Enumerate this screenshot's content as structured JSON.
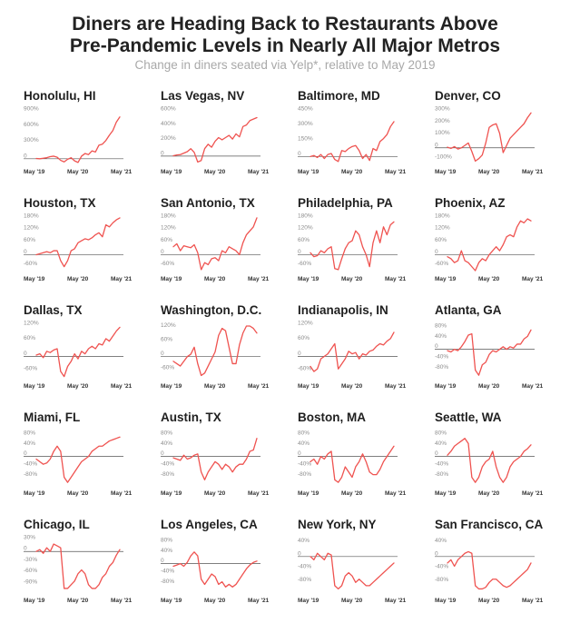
{
  "title_line1": "Diners are Heading Back to Restaurants Above",
  "title_line2": "Pre-Pandemic Levels in Nearly All Major Metros",
  "subtitle": "Change in diners seated via Yelp*, relative to May 2019",
  "colors": {
    "line": "#ef5350",
    "axis": "#555555",
    "text": "#222222",
    "tick": "#8c8c8c"
  },
  "chart_data": [
    {
      "type": "line",
      "title": "Honolulu, HI",
      "yticks": [
        "900%",
        "600%",
        "300%",
        "0"
      ],
      "ytick_values": [
        900,
        600,
        300,
        0
      ],
      "ylim": [
        -90,
        900
      ],
      "xticks": [
        "May '19",
        "May '20",
        "May '21"
      ],
      "values": [
        5,
        0,
        10,
        20,
        40,
        50,
        30,
        -30,
        -60,
        -10,
        20,
        -40,
        -70,
        50,
        100,
        80,
        150,
        130,
        260,
        280,
        350,
        450,
        540,
        700,
        800
      ]
    },
    {
      "type": "line",
      "title": "Las Vegas, NV",
      "yticks": [
        "600%",
        "400%",
        "200%",
        "0"
      ],
      "ytick_values": [
        600,
        400,
        200,
        0
      ],
      "ylim": [
        -100,
        600
      ],
      "xticks": [
        "May '19",
        "May '20",
        "May '21"
      ],
      "values": [
        5,
        15,
        20,
        40,
        60,
        100,
        50,
        -80,
        -60,
        100,
        160,
        120,
        200,
        250,
        220,
        250,
        280,
        230,
        300,
        260,
        400,
        420,
        480,
        500,
        520
      ]
    },
    {
      "type": "line",
      "title": "Baltimore, MD",
      "yticks": [
        "450%",
        "300%",
        "150%",
        "0"
      ],
      "ytick_values": [
        450,
        300,
        150,
        0
      ],
      "ylim": [
        -70,
        450
      ],
      "xticks": [
        "May '19",
        "May '20",
        "May '21"
      ],
      "values": [
        0,
        10,
        -10,
        20,
        -20,
        20,
        30,
        -30,
        -50,
        60,
        50,
        80,
        100,
        110,
        60,
        -20,
        20,
        -40,
        80,
        60,
        150,
        180,
        220,
        300,
        350
      ]
    },
    {
      "type": "line",
      "title": "Denver, CO",
      "yticks": [
        "300%",
        "200%",
        "100%",
        "0",
        "-100%"
      ],
      "ytick_values": [
        300,
        200,
        100,
        0,
        -100
      ],
      "ylim": [
        -130,
        300
      ],
      "xticks": [
        "May '19",
        "May '20",
        "May '21"
      ],
      "values": [
        5,
        -5,
        10,
        -10,
        0,
        20,
        40,
        -30,
        -110,
        -90,
        -60,
        40,
        170,
        190,
        200,
        120,
        -40,
        20,
        80,
        110,
        140,
        170,
        200,
        250,
        290
      ]
    },
    {
      "type": "line",
      "title": "Houston, TX",
      "yticks": [
        "180%",
        "120%",
        "60%",
        "0",
        "-60%"
      ],
      "ytick_values": [
        180,
        120,
        60,
        0,
        -60
      ],
      "ylim": [
        -80,
        180
      ],
      "xticks": [
        "May '19",
        "May '20",
        "May '21"
      ],
      "values": [
        0,
        5,
        10,
        15,
        10,
        20,
        20,
        -30,
        -60,
        -30,
        20,
        30,
        60,
        70,
        80,
        75,
        85,
        100,
        110,
        90,
        150,
        140,
        160,
        175,
        185
      ]
    },
    {
      "type": "line",
      "title": "San Antonio, TX",
      "yticks": [
        "180%",
        "120%",
        "60%",
        "0",
        "-60%"
      ],
      "ytick_values": [
        180,
        120,
        60,
        0,
        -60
      ],
      "ylim": [
        -80,
        180
      ],
      "xticks": [
        "May '19",
        "May '20",
        "May '21"
      ],
      "values": [
        40,
        55,
        20,
        45,
        40,
        35,
        50,
        10,
        -75,
        -40,
        -50,
        -20,
        -15,
        -30,
        20,
        10,
        40,
        30,
        20,
        0,
        60,
        100,
        120,
        140,
        185
      ]
    },
    {
      "type": "line",
      "title": "Philadelphia, PA",
      "yticks": [
        "180%",
        "120%",
        "60%",
        "0",
        "-60%"
      ],
      "ytick_values": [
        180,
        120,
        60,
        0,
        -60
      ],
      "ylim": [
        -80,
        180
      ],
      "xticks": [
        "May '19",
        "May '20",
        "May '21"
      ],
      "values": [
        10,
        -10,
        -5,
        20,
        10,
        30,
        40,
        -70,
        -75,
        -20,
        30,
        60,
        70,
        120,
        100,
        40,
        0,
        -60,
        60,
        120,
        60,
        140,
        100,
        150,
        165
      ]
    },
    {
      "type": "line",
      "title": "Phoenix, AZ",
      "yticks": [
        "180%",
        "120%",
        "60%",
        "0",
        "-60%"
      ],
      "ytick_values": [
        180,
        120,
        60,
        0,
        -60
      ],
      "ylim": [
        -80,
        180
      ],
      "xticks": [
        "May '19",
        "May '20",
        "May '21"
      ],
      "values": [
        -10,
        -20,
        -40,
        -30,
        20,
        -30,
        -40,
        -60,
        -80,
        -40,
        -20,
        -30,
        0,
        20,
        40,
        20,
        50,
        90,
        100,
        90,
        140,
        170,
        160,
        180,
        170
      ]
    },
    {
      "type": "line",
      "title": "Dallas, TX",
      "yticks": [
        "120%",
        "60%",
        "0",
        "-60%"
      ],
      "ytick_values": [
        120,
        60,
        0,
        -60
      ],
      "ylim": [
        -85,
        120
      ],
      "xticks": [
        "May '19",
        "May '20",
        "May '21"
      ],
      "values": [
        5,
        10,
        -5,
        20,
        15,
        25,
        30,
        -60,
        -80,
        -40,
        -20,
        10,
        -10,
        20,
        10,
        30,
        40,
        30,
        50,
        45,
        70,
        60,
        80,
        100,
        115
      ]
    },
    {
      "type": "line",
      "title": "Washington, D.C.",
      "yticks": [
        "120%",
        "60%",
        "0",
        "-60%"
      ],
      "ytick_values": [
        120,
        60,
        0,
        -60
      ],
      "ylim": [
        -90,
        130
      ],
      "xticks": [
        "May '19",
        "May '20",
        "May '21"
      ],
      "values": [
        -20,
        -30,
        -40,
        -20,
        0,
        10,
        40,
        -30,
        -80,
        -70,
        -40,
        -10,
        20,
        90,
        120,
        110,
        40,
        -30,
        -30,
        50,
        100,
        130,
        130,
        120,
        100
      ]
    },
    {
      "type": "line",
      "title": "Indianapolis, IN",
      "yticks": [
        "120%",
        "60%",
        "0",
        "-60%"
      ],
      "ytick_values": [
        120,
        60,
        0,
        -60
      ],
      "ylim": [
        -85,
        120
      ],
      "xticks": [
        "May '19",
        "May '20",
        "May '21"
      ],
      "values": [
        -40,
        -60,
        -50,
        -10,
        0,
        10,
        30,
        50,
        -50,
        -30,
        -10,
        20,
        10,
        15,
        -10,
        10,
        5,
        20,
        25,
        40,
        50,
        45,
        60,
        70,
        95
      ]
    },
    {
      "type": "line",
      "title": "Atlanta, GA",
      "yticks": [
        "80%",
        "40%",
        "0",
        "-40%",
        "-80%"
      ],
      "ytick_values": [
        80,
        40,
        0,
        -40,
        -80
      ],
      "ylim": [
        -110,
        90
      ],
      "xticks": [
        "May '19",
        "May '20",
        "May '21"
      ],
      "values": [
        -5,
        -10,
        0,
        -5,
        10,
        30,
        55,
        60,
        -80,
        -100,
        -60,
        -50,
        -20,
        -5,
        -10,
        0,
        10,
        0,
        10,
        5,
        20,
        20,
        40,
        50,
        75
      ]
    },
    {
      "type": "line",
      "title": "Miami, FL",
      "yticks": [
        "80%",
        "40%",
        "0",
        "-40%",
        "-80%"
      ],
      "ytick_values": [
        80,
        40,
        0,
        -40,
        -80
      ],
      "ylim": [
        -110,
        90
      ],
      "xticks": [
        "May '19",
        "May '20",
        "May '21"
      ],
      "values": [
        -10,
        -20,
        -30,
        -25,
        -10,
        20,
        40,
        20,
        -80,
        -100,
        -80,
        -60,
        -40,
        -20,
        -10,
        0,
        20,
        30,
        40,
        40,
        50,
        60,
        65,
        70,
        75
      ]
    },
    {
      "type": "line",
      "title": "Austin, TX",
      "yticks": [
        "80%",
        "40%",
        "0",
        "-40%",
        "-80%"
      ],
      "ytick_values": [
        80,
        40,
        0,
        -40,
        -80
      ],
      "ylim": [
        -110,
        90
      ],
      "xticks": [
        "May '19",
        "May '20",
        "May '21"
      ],
      "values": [
        -5,
        -10,
        -15,
        5,
        -10,
        -5,
        5,
        10,
        -60,
        -90,
        -60,
        -40,
        -20,
        -30,
        -50,
        -30,
        -40,
        -60,
        -40,
        -30,
        -30,
        -10,
        20,
        25,
        70
      ]
    },
    {
      "type": "line",
      "title": "Boston, MA",
      "yticks": [
        "80%",
        "40%",
        "0",
        "-40%",
        "-80%"
      ],
      "ytick_values": [
        80,
        40,
        0,
        -40,
        -80
      ],
      "ylim": [
        -110,
        90
      ],
      "xticks": [
        "May '19",
        "May '20",
        "May '21"
      ],
      "values": [
        -20,
        -10,
        -30,
        0,
        -10,
        10,
        20,
        -90,
        -100,
        -80,
        -40,
        -60,
        -80,
        -40,
        -20,
        10,
        -20,
        -60,
        -70,
        -70,
        -50,
        -20,
        0,
        20,
        40
      ]
    },
    {
      "type": "line",
      "title": "Seattle, WA",
      "yticks": [
        "80%",
        "40%",
        "0",
        "-40%",
        "-80%"
      ],
      "ytick_values": [
        80,
        40,
        0,
        -40,
        -80
      ],
      "ylim": [
        -110,
        90
      ],
      "xticks": [
        "May '19",
        "May '20",
        "May '21"
      ],
      "values": [
        5,
        20,
        40,
        50,
        60,
        70,
        50,
        -80,
        -100,
        -80,
        -40,
        -20,
        -10,
        20,
        -40,
        -80,
        -100,
        -80,
        -40,
        -20,
        -10,
        0,
        20,
        30,
        45
      ]
    },
    {
      "type": "line",
      "title": "Chicago, IL",
      "yticks": [
        "30%",
        "0",
        "-30%",
        "-60%",
        "-90%"
      ],
      "ytick_values": [
        30,
        0,
        -30,
        -60,
        -90
      ],
      "ylim": [
        -110,
        30
      ],
      "xticks": [
        "May '19",
        "May '20",
        "May '21"
      ],
      "values": [
        0,
        5,
        -5,
        10,
        0,
        20,
        15,
        10,
        -100,
        -100,
        -90,
        -80,
        -60,
        -50,
        -60,
        -90,
        -100,
        -100,
        -90,
        -70,
        -60,
        -40,
        -30,
        -10,
        5
      ]
    },
    {
      "type": "line",
      "title": "Los Angeles, CA",
      "yticks": [
        "80%",
        "40%",
        "0",
        "-40%",
        "-80%"
      ],
      "ytick_values": [
        80,
        40,
        0,
        -40,
        -80
      ],
      "ylim": [
        -110,
        90
      ],
      "xticks": [
        "May '19",
        "May '20",
        "May '21"
      ],
      "values": [
        -10,
        -5,
        0,
        -10,
        5,
        30,
        45,
        30,
        -60,
        -80,
        -60,
        -40,
        -50,
        -80,
        -70,
        -90,
        -80,
        -90,
        -80,
        -60,
        -40,
        -20,
        -5,
        5,
        10
      ]
    },
    {
      "type": "line",
      "title": "New York, NY",
      "yticks": [
        "40%",
        "0",
        "-40%",
        "-80%"
      ],
      "ytick_values": [
        40,
        0,
        -40,
        -80
      ],
      "ylim": [
        -110,
        50
      ],
      "xticks": [
        "May '19",
        "May '20",
        "May '21"
      ],
      "values": [
        0,
        -10,
        10,
        0,
        -10,
        10,
        5,
        -90,
        -100,
        -90,
        -60,
        -50,
        -60,
        -80,
        -70,
        -80,
        -90,
        -90,
        -80,
        -70,
        -60,
        -50,
        -40,
        -30,
        -20
      ]
    },
    {
      "type": "line",
      "title": "San Francisco, CA",
      "yticks": [
        "40%",
        "0",
        "-40%",
        "-80%"
      ],
      "ytick_values": [
        40,
        0,
        -40,
        -80
      ],
      "ylim": [
        -110,
        50
      ],
      "xticks": [
        "May '19",
        "May '20",
        "May '21"
      ],
      "values": [
        -20,
        -10,
        -30,
        -10,
        0,
        10,
        15,
        10,
        -90,
        -100,
        -100,
        -95,
        -80,
        -70,
        -70,
        -80,
        -90,
        -95,
        -90,
        -80,
        -70,
        -60,
        -50,
        -40,
        -20
      ]
    }
  ]
}
